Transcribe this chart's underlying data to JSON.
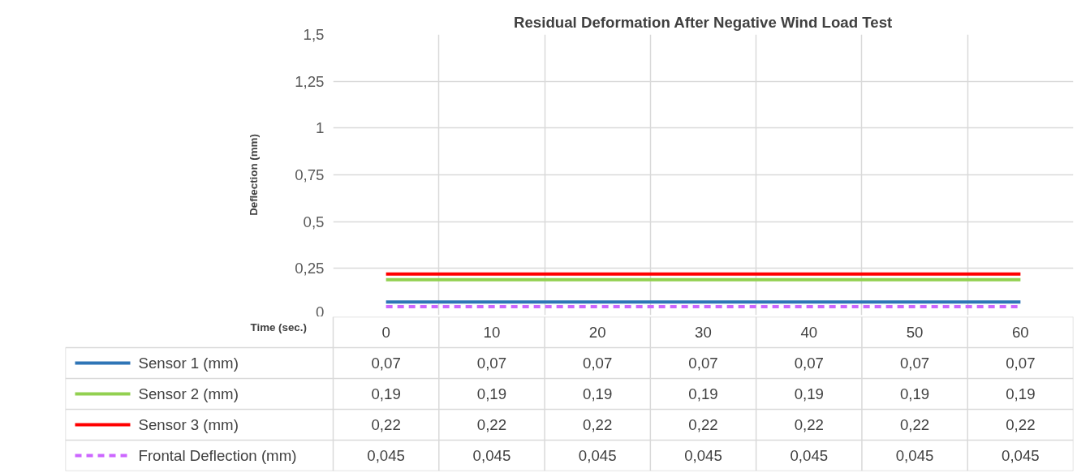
{
  "chart_data": {
    "type": "line",
    "title": "Residual Deformation After Negative Wind Load Test",
    "xlabel": "Time (sec.)",
    "ylabel": "Deflection (mm)",
    "categories": [
      "0",
      "10",
      "20",
      "30",
      "40",
      "50",
      "60"
    ],
    "ylim": [
      0,
      1.5
    ],
    "yticks": [
      0,
      {
        "value": 0.25,
        "label": "0,25"
      },
      {
        "value": 0.5,
        "label": "0,5"
      },
      {
        "value": 0.75,
        "label": "0,75"
      },
      1,
      {
        "value": 1.25,
        "label": "1,25"
      },
      {
        "value": 1.5,
        "label": "1,5"
      }
    ],
    "grid": true,
    "legend": "bottom",
    "marker": "none",
    "series": [
      {
        "name": "Sensor 1 (mm)",
        "color": "#2e75b6",
        "values": [
          0.07,
          0.07,
          0.07,
          0.07,
          0.07,
          0.07,
          0.07
        ],
        "value_labels": [
          "0,07",
          "0,07",
          "0,07",
          "0,07",
          "0,07",
          "0,07",
          "0,07"
        ]
      },
      {
        "name": "Sensor 2 (mm)",
        "color": "#92d050",
        "values": [
          0.19,
          0.19,
          0.19,
          0.19,
          0.19,
          0.19,
          0.19
        ],
        "value_labels": [
          "0,19",
          "0,19",
          "0,19",
          "0,19",
          "0,19",
          "0,19",
          "0,19"
        ]
      },
      {
        "name": "Sensor 3 (mm)",
        "color": "#ff0000",
        "values": [
          0.22,
          0.22,
          0.22,
          0.22,
          0.22,
          0.22,
          0.22
        ],
        "value_labels": [
          "0,22",
          "0,22",
          "0,22",
          "0,22",
          "0,22",
          "0,22",
          "0,22"
        ]
      },
      {
        "name": "Frontal Deflection (mm)",
        "color": "#cc66ff",
        "line_style": "dashed",
        "values": [
          0.045,
          0.045,
          0.045,
          0.045,
          0.045,
          0.045,
          0.045
        ],
        "value_labels": [
          "0,045",
          "0,045",
          "0,045",
          "0,045",
          "0,045",
          "0,045",
          "0,045"
        ]
      }
    ]
  }
}
